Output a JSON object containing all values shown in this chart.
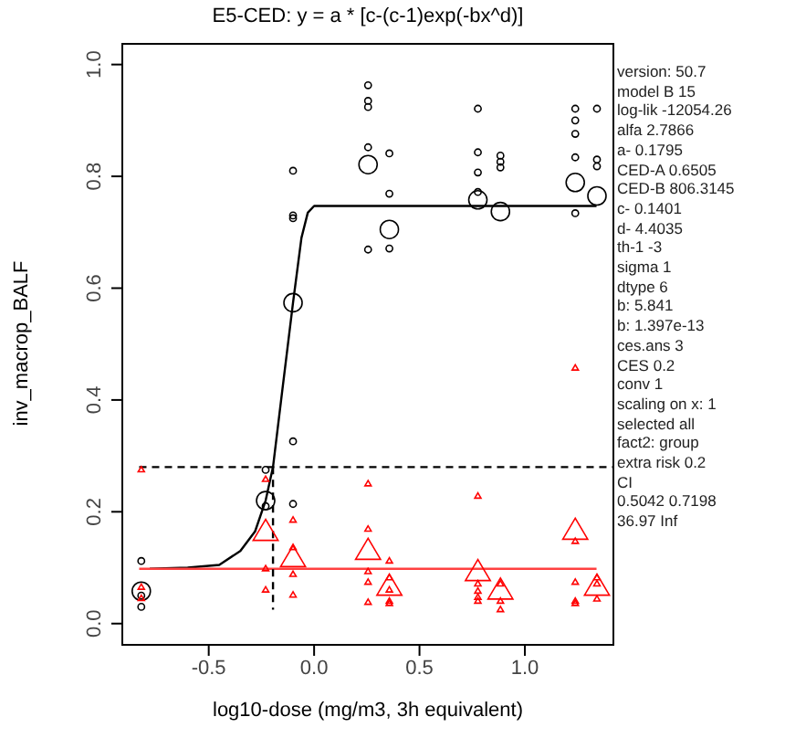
{
  "chart_data": {
    "type": "scatter",
    "title": "E5-CED: y = a * [c-(c-1)exp(-bx^d)]",
    "xlabel": "log10-dose (mg/m3, 3h equivalent)",
    "ylabel": "inv_macrop_BALF",
    "xlim": [
      -0.91,
      1.42
    ],
    "ylim": [
      -0.038,
      1.037
    ],
    "xticks": [
      {
        "value": -0.5,
        "label": "-0.5"
      },
      {
        "value": 0,
        "label": "0.0"
      },
      {
        "value": 0.5,
        "label": "0.5"
      },
      {
        "value": 1,
        "label": "1.0"
      }
    ],
    "yticks": [
      {
        "value": 0,
        "label": "0.0"
      },
      {
        "value": 0.2,
        "label": "0.2"
      },
      {
        "value": 0.4,
        "label": "0.4"
      },
      {
        "value": 0.6,
        "label": "0.6"
      },
      {
        "value": 0.8,
        "label": "0.8"
      },
      {
        "value": 1,
        "label": "1.0"
      }
    ],
    "grid": false,
    "legend": false,
    "series": [
      {
        "marker": "circle",
        "color": "#000000",
        "x": [
          -0.82,
          -0.82,
          -0.82,
          -0.23,
          -0.23,
          -0.1,
          -0.1,
          -0.1,
          -0.1,
          -0.1,
          0.256,
          0.256,
          0.256,
          0.256,
          0.256,
          0.357,
          0.357,
          0.357,
          0.777,
          0.777,
          0.777,
          0.777,
          0.884,
          0.884,
          0.884,
          1.239,
          1.239,
          1.239,
          1.239,
          1.239,
          1.342,
          1.342,
          1.342
        ],
        "values": [
          0.112,
          0.03,
          0.05,
          0.275,
          0.21,
          0.81,
          0.73,
          0.725,
          0.326,
          0.214,
          0.963,
          0.935,
          0.924,
          0.852,
          0.669,
          0.841,
          0.769,
          0.671,
          0.921,
          0.843,
          0.807,
          0.772,
          0.837,
          0.826,
          0.816,
          0.921,
          0.9,
          0.876,
          0.834,
          0.734,
          0.921,
          0.83,
          0.818
        ]
      },
      {
        "type": "bubble",
        "marker": "circle",
        "color": "#000000",
        "x": [
          -0.82,
          -0.23,
          -0.1,
          0.256,
          0.357,
          0.777,
          0.884,
          1.239,
          1.342
        ],
        "values": [
          0.058,
          0.22,
          0.574,
          0.821,
          0.705,
          0.758,
          0.737,
          0.789,
          0.765
        ],
        "sizes": [
          1,
          1,
          1,
          1,
          1,
          1,
          1,
          1,
          1
        ]
      },
      {
        "marker": "triangle",
        "color": "#ff0000",
        "x": [
          -0.82,
          -0.82,
          -0.82,
          -0.23,
          -0.23,
          -0.23,
          -0.1,
          -0.1,
          -0.1,
          -0.1,
          0.256,
          0.256,
          0.256,
          0.256,
          0.256,
          0.357,
          0.357,
          0.357,
          0.357,
          0.357,
          0.777,
          0.777,
          0.777,
          0.777,
          0.777,
          0.884,
          0.884,
          0.884,
          1.239,
          1.239,
          1.239,
          1.239,
          1.239,
          1.342,
          1.342,
          1.342
        ],
        "values": [
          0.275,
          0.065,
          0.045,
          0.258,
          0.098,
          0.06,
          0.185,
          0.136,
          0.088,
          0.051,
          0.25,
          0.169,
          0.093,
          0.074,
          0.038,
          0.112,
          0.082,
          0.06,
          0.04,
          0.036,
          0.228,
          0.071,
          0.058,
          0.047,
          0.04,
          0.071,
          0.04,
          0.025,
          0.457,
          0.147,
          0.074,
          0.04,
          0.036,
          0.082,
          0.071,
          0.044
        ]
      },
      {
        "type": "bubble",
        "marker": "triangle",
        "color": "#ff0000",
        "x": [
          -0.23,
          -0.1,
          0.256,
          0.357,
          0.777,
          0.884,
          1.239,
          1.342
        ],
        "values": [
          0.163,
          0.116,
          0.129,
          0.065,
          0.091,
          0.058,
          0.165,
          0.065
        ],
        "sizes": [
          1,
          1,
          1,
          1,
          1,
          1,
          1,
          1
        ]
      },
      {
        "type": "line",
        "line_style": "solid",
        "color": "#000000",
        "x": [
          -0.78,
          -0.6,
          -0.45,
          -0.35,
          -0.28,
          -0.23,
          -0.195,
          -0.15,
          -0.1,
          -0.06,
          -0.03,
          0,
          1.34
        ],
        "values": [
          0.098,
          0.1,
          0.105,
          0.13,
          0.165,
          0.22,
          0.28,
          0.42,
          0.574,
          0.69,
          0.735,
          0.747,
          0.747
        ]
      },
      {
        "type": "line",
        "line_style": "solid",
        "color": "#ff4040",
        "x": [
          -0.83,
          1.34
        ],
        "values": [
          0.098,
          0.098
        ]
      },
      {
        "type": "line",
        "line_style": "dashed",
        "color": "#000000",
        "x": [
          -0.83,
          1.42
        ],
        "values": [
          0.28,
          0.28
        ]
      },
      {
        "type": "line",
        "line_style": "dashed",
        "color": "#000000",
        "x": [
          -0.195,
          -0.195
        ],
        "values": [
          0.28,
          0.025
        ]
      }
    ],
    "annotations": [
      "version: 50.7",
      "model B 15",
      "log-lik -12054.26",
      "alfa 2.7866",
      "a- 0.1795",
      "CED-A 0.6505",
      "CED-B 806.3145",
      "c- 0.1401",
      "d- 4.4035",
      "th-1 -3",
      "sigma 1",
      "dtype 6",
      "b: 5.841",
      "b: 1.397e-13",
      "ces.ans 3",
      "CES 0.2",
      "conv 1",
      "scaling on x: 1",
      "selected all",
      "fact2: group",
      "extra risk 0.2",
      "CI",
      "0.5042 0.7198",
      "36.97 Inf"
    ]
  }
}
